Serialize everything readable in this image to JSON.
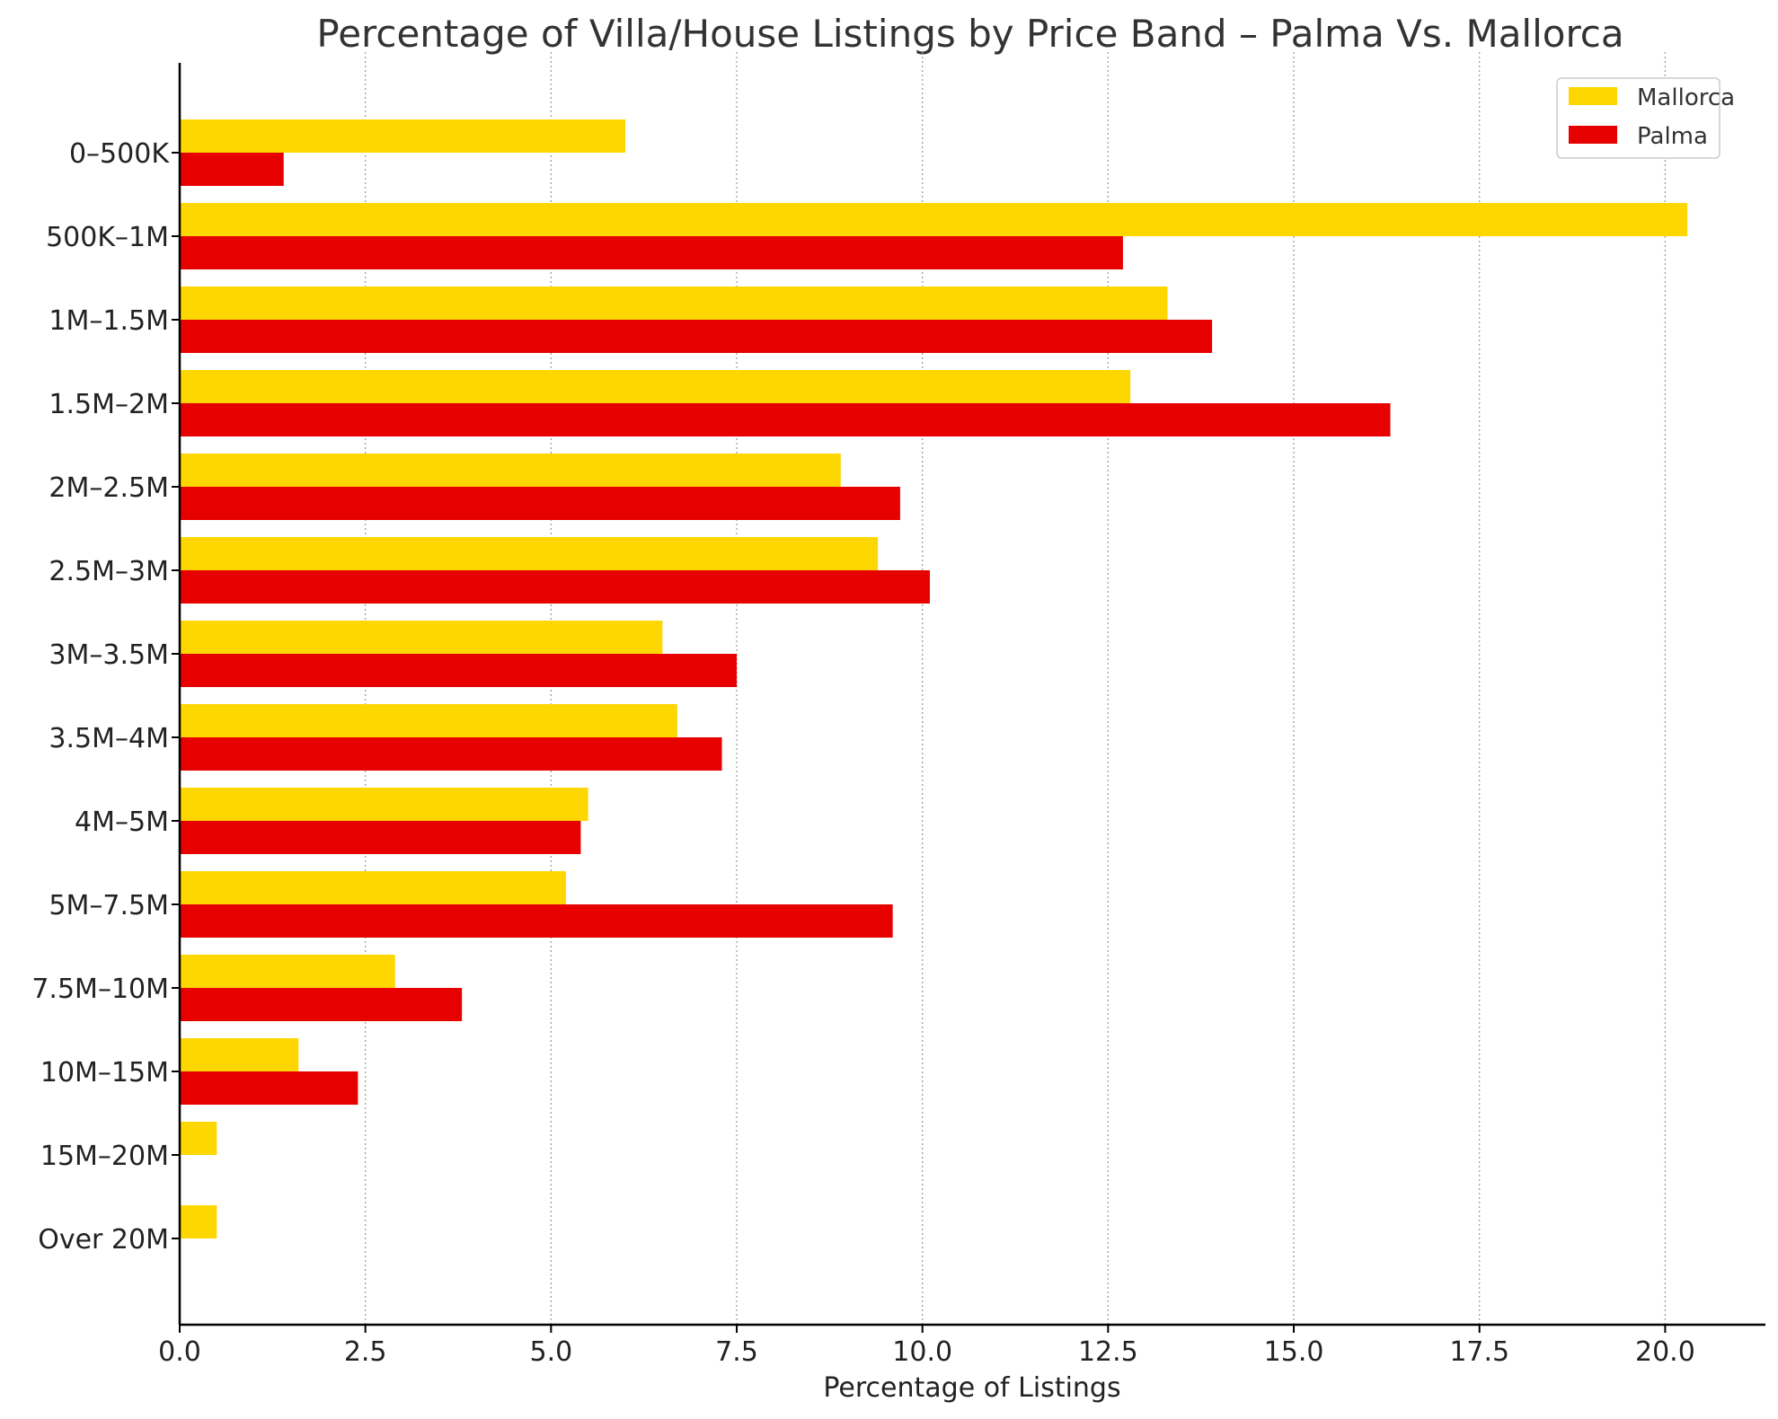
{
  "chart_data": {
    "type": "bar",
    "orientation": "horizontal",
    "title": "Percentage of Villa/House Listings by Price Band – Palma Vs. Mallorca",
    "xlabel": "Percentage of Listings",
    "ylabel": "",
    "xlim": [
      0,
      21.35
    ],
    "xticks": [
      0.0,
      2.5,
      5.0,
      7.5,
      10.0,
      12.5,
      15.0,
      17.5,
      20.0
    ],
    "xtick_labels": [
      "0.0",
      "2.5",
      "5.0",
      "7.5",
      "10.0",
      "12.5",
      "15.0",
      "17.5",
      "20.0"
    ],
    "grid": "x",
    "legend_position": "top-right",
    "categories": [
      "0–500K",
      "500K–1M",
      "1M–1.5M",
      "1.5M–2M",
      "2M–2.5M",
      "2.5M–3M",
      "3M–3.5M",
      "3.5M–4M",
      "4M–5M",
      "5M–7.5M",
      "7.5M–10M",
      "10M–15M",
      "15M–20M",
      "Over 20M"
    ],
    "series": [
      {
        "name": "Mallorca",
        "color": "#FFD700",
        "values": [
          6.0,
          20.3,
          13.3,
          12.8,
          8.9,
          9.4,
          6.5,
          6.7,
          5.5,
          5.2,
          2.9,
          1.6,
          0.5,
          0.5
        ]
      },
      {
        "name": "Palma",
        "color": "#E60000",
        "values": [
          1.4,
          12.7,
          13.9,
          16.3,
          9.7,
          10.1,
          7.5,
          7.3,
          5.4,
          9.6,
          3.8,
          2.4,
          0.0,
          0.0
        ]
      }
    ]
  }
}
